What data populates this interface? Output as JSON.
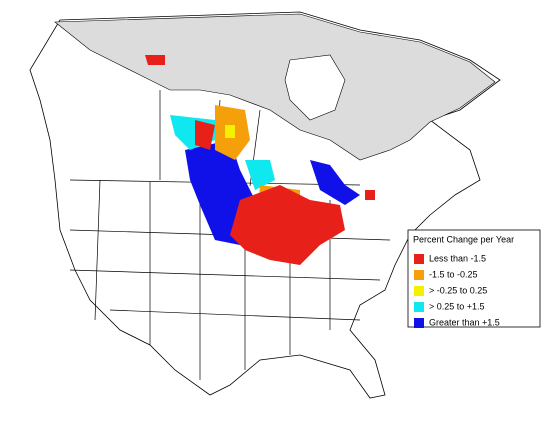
{
  "legend": {
    "title": "Percent Change per Year",
    "items": [
      {
        "label": "Less than -1.5",
        "color": "#e8201a"
      },
      {
        "label": "-1.5 to -0.25",
        "color": "#f5a00a"
      },
      {
        "label": "> -0.25 to 0.25",
        "color": "#f5f000"
      },
      {
        "label": "> 0.25 to +1.5",
        "color": "#10e8f0"
      },
      {
        "label": "Greater than +1.5",
        "color": "#1010e8"
      }
    ]
  }
}
